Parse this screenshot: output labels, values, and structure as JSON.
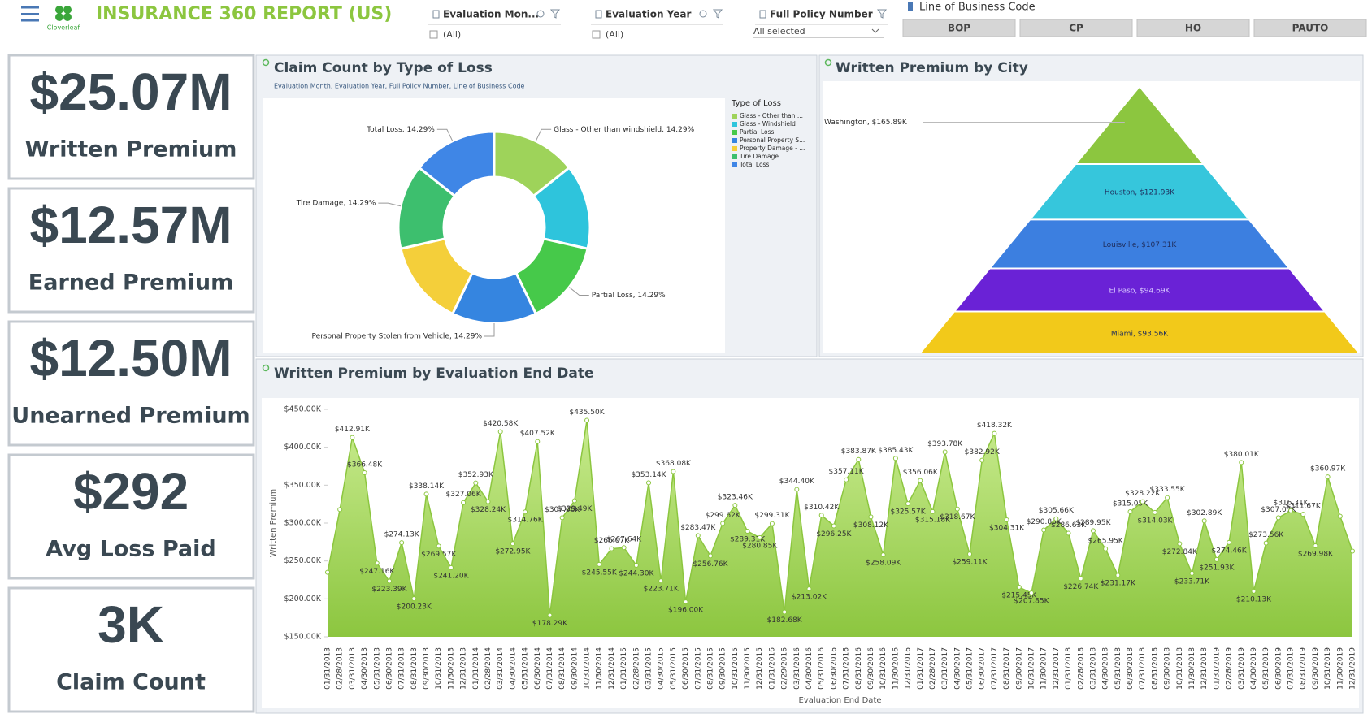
{
  "header": {
    "logo": "Cloverleaf",
    "title": "INSURANCE 360 REPORT (US)"
  },
  "filters": [
    {
      "label": "Evaluation Mon...",
      "value": "(All)"
    },
    {
      "label": "Evaluation Year",
      "value": "(All)"
    },
    {
      "label": "Full Policy Number",
      "value": "All selected"
    }
  ],
  "line_of_business": {
    "label": "Line of Business Code",
    "options": [
      "BOP",
      "CP",
      "HO",
      "PAUTO"
    ]
  },
  "kpis": [
    {
      "value": "$25.07M",
      "label": "Written Premium"
    },
    {
      "value": "$12.57M",
      "label": "Earned Premium"
    },
    {
      "value": "$12.50M",
      "label": "Unearned Premium"
    },
    {
      "value": "$292",
      "label": "Avg Loss Paid"
    },
    {
      "value": "3K",
      "label": "Claim Count"
    }
  ],
  "chart_data": [
    {
      "type": "donut",
      "title": "Claim Count by Type of Loss",
      "subtitle": "Evaluation Month, Evaluation Year, Full Policy Number, Line of Business Code",
      "legend_title": "Type of Loss",
      "categories": [
        "Glass - Other than ...",
        "Glass - Windshield",
        "Partial Loss",
        "Personal Property S...",
        "Property Damage - ...",
        "Tire Damage",
        "Total Loss"
      ],
      "values": [
        14.29,
        14.29,
        14.29,
        14.29,
        14.29,
        14.29,
        14.29
      ],
      "value_labels": [
        "Glass - Other than windshield, 14.29%",
        null,
        "Partial Loss, 14.29%",
        "Personal Property Stolen from Vehicle, 14.29%",
        null,
        "Tire Damage, 14.29%",
        "Total Loss, 14.29%"
      ],
      "colors": [
        "#9ed35a",
        "#2ec4dc",
        "#46c94a",
        "#3585e0",
        "#f4cf3a",
        "#3dbf6e",
        "#3f86e6"
      ]
    },
    {
      "type": "pyramid",
      "title": "Written Premium by City",
      "values": [
        165890,
        121930,
        107310,
        94690,
        93560
      ],
      "value_labels": [
        "Washington, $165.89K",
        "Houston, $121.93K",
        "Louisville, $107.31K",
        "El Paso, $94.69K",
        "Miami, $93.56K"
      ],
      "colors": [
        "#8cc63f",
        "#36c6dc",
        "#3c7fe0",
        "#6a22d6",
        "#f2c91a"
      ]
    },
    {
      "type": "area",
      "title": "Written Premium by Evaluation End Date",
      "x_label": "Evaluation End Date",
      "y_label": "Written Premium",
      "color": "#8cc63f",
      "x": [
        "01/31/2013",
        "02/28/2013",
        "03/31/2013",
        "04/30/2013",
        "05/31/2013",
        "06/30/2013",
        "07/31/2013",
        "08/31/2013",
        "09/30/2013",
        "10/31/2013",
        "11/30/2013",
        "12/31/2013",
        "01/31/2014",
        "02/28/2014",
        "03/31/2014",
        "04/30/2014",
        "05/31/2014",
        "06/30/2014",
        "07/31/2014",
        "08/31/2014",
        "09/30/2014",
        "10/31/2014",
        "11/30/2014",
        "12/31/2014",
        "01/31/2015",
        "02/28/2015",
        "03/31/2015",
        "04/30/2015",
        "05/31/2015",
        "06/30/2015",
        "07/31/2015",
        "08/31/2015",
        "09/30/2015",
        "10/31/2015",
        "11/30/2015",
        "12/31/2015",
        "01/31/2016",
        "02/29/2016",
        "03/31/2016",
        "04/30/2016",
        "05/31/2016",
        "06/30/2016",
        "07/31/2016",
        "08/31/2016",
        "09/30/2016",
        "10/31/2016",
        "11/30/2016",
        "12/31/2016",
        "01/31/2017",
        "02/28/2017",
        "03/31/2017",
        "04/30/2017",
        "05/31/2017",
        "06/30/2017",
        "07/31/2017",
        "08/31/2017",
        "09/30/2017",
        "10/31/2017",
        "11/30/2017",
        "12/31/2017",
        "01/31/2018",
        "02/28/2018",
        "03/31/2018",
        "04/30/2018",
        "05/31/2018",
        "06/30/2018",
        "07/31/2018",
        "08/31/2018",
        "09/30/2018",
        "10/31/2018",
        "11/30/2018",
        "12/31/2018",
        "01/31/2019",
        "02/28/2019",
        "03/31/2019",
        "04/30/2019",
        "05/31/2019",
        "06/30/2019",
        "07/31/2019",
        "08/31/2019",
        "09/30/2019",
        "10/31/2019",
        "11/30/2019",
        "12/31/2019"
      ],
      "values": [
        235000,
        318000,
        412910,
        366480,
        247160,
        223390,
        274130,
        200230,
        338140,
        269570,
        241200,
        327060,
        352930,
        328240,
        420580,
        272950,
        314760,
        407520,
        178290,
        307060,
        329490,
        435500,
        245550,
        266070,
        267640,
        244300,
        353140,
        223710,
        368080,
        196000,
        283470,
        256760,
        299620,
        323460,
        289310,
        280850,
        299310,
        182680,
        344400,
        213020,
        310420,
        296250,
        357110,
        383870,
        308120,
        258090,
        385430,
        325570,
        356060,
        315180,
        393780,
        318670,
        259110,
        382920,
        418320,
        304310,
        215450,
        207850,
        290830,
        305660,
        286630,
        226740,
        289950,
        265950,
        231170,
        315050,
        328220,
        314030,
        333550,
        272840,
        233710,
        302890,
        251930,
        274460,
        380010,
        210130,
        273560,
        307070,
        316310,
        311670,
        269980,
        360970,
        309000,
        263000
      ],
      "value_labels": [
        null,
        null,
        "$412.91K",
        "$366.48K",
        "$247.16K",
        "$223.39K",
        "$274.13K",
        "$200.23K",
        "$338.14K",
        "$269.57K",
        "$241.20K",
        "$327.06K",
        "$352.93K",
        "$328.24K",
        "$420.58K",
        "$272.95K",
        "$314.76K",
        "$407.52K",
        "$178.29K",
        "$307.06K",
        "$329.49K",
        "$435.50K",
        "$245.55K",
        "$266.07K",
        "$267.64K",
        "$244.30K",
        "$353.14K",
        "$223.71K",
        "$368.08K",
        "$196.00K",
        "$283.47K",
        "$256.76K",
        "$299.62K",
        "$323.46K",
        "$289.31K",
        "$280.85K",
        "$299.31K",
        "$182.68K",
        "$344.40K",
        "$213.02K",
        "$310.42K",
        "$296.25K",
        "$357.11K",
        "$383.87K",
        "$308.12K",
        "$258.09K",
        "$385.43K",
        "$325.57K",
        "$356.06K",
        "$315.18K",
        "$393.78K",
        "$318.67K",
        "$259.11K",
        "$382.92K",
        "$418.32K",
        "$304.31K",
        "$215.45K",
        "$207.85K",
        "$290.83K",
        "$305.66K",
        "$286.63K",
        "$226.74K",
        "$289.95K",
        "$265.95K",
        "$231.17K",
        "$315.05K",
        "$328.22K",
        "$314.03K",
        "$333.55K",
        "$272.84K",
        "$233.71K",
        "$302.89K",
        "$251.93K",
        "$274.46K",
        "$380.01K",
        "$210.13K",
        "$273.56K",
        "$307.07K",
        "$316.31K",
        "$311.67K",
        "$269.98K",
        "$360.97K",
        null,
        null
      ],
      "ylim": [
        150000,
        450000
      ],
      "yticks": [
        {
          "value": 150000,
          "label": "$150.00K"
        },
        {
          "value": 200000,
          "label": "$200.00K"
        },
        {
          "value": 250000,
          "label": "$250.00K"
        },
        {
          "value": 300000,
          "label": "$300.00K"
        },
        {
          "value": 350000,
          "label": "$350.00K"
        },
        {
          "value": 400000,
          "label": "$400.00K"
        },
        {
          "value": 450000,
          "label": "$450.00K"
        }
      ]
    }
  ]
}
